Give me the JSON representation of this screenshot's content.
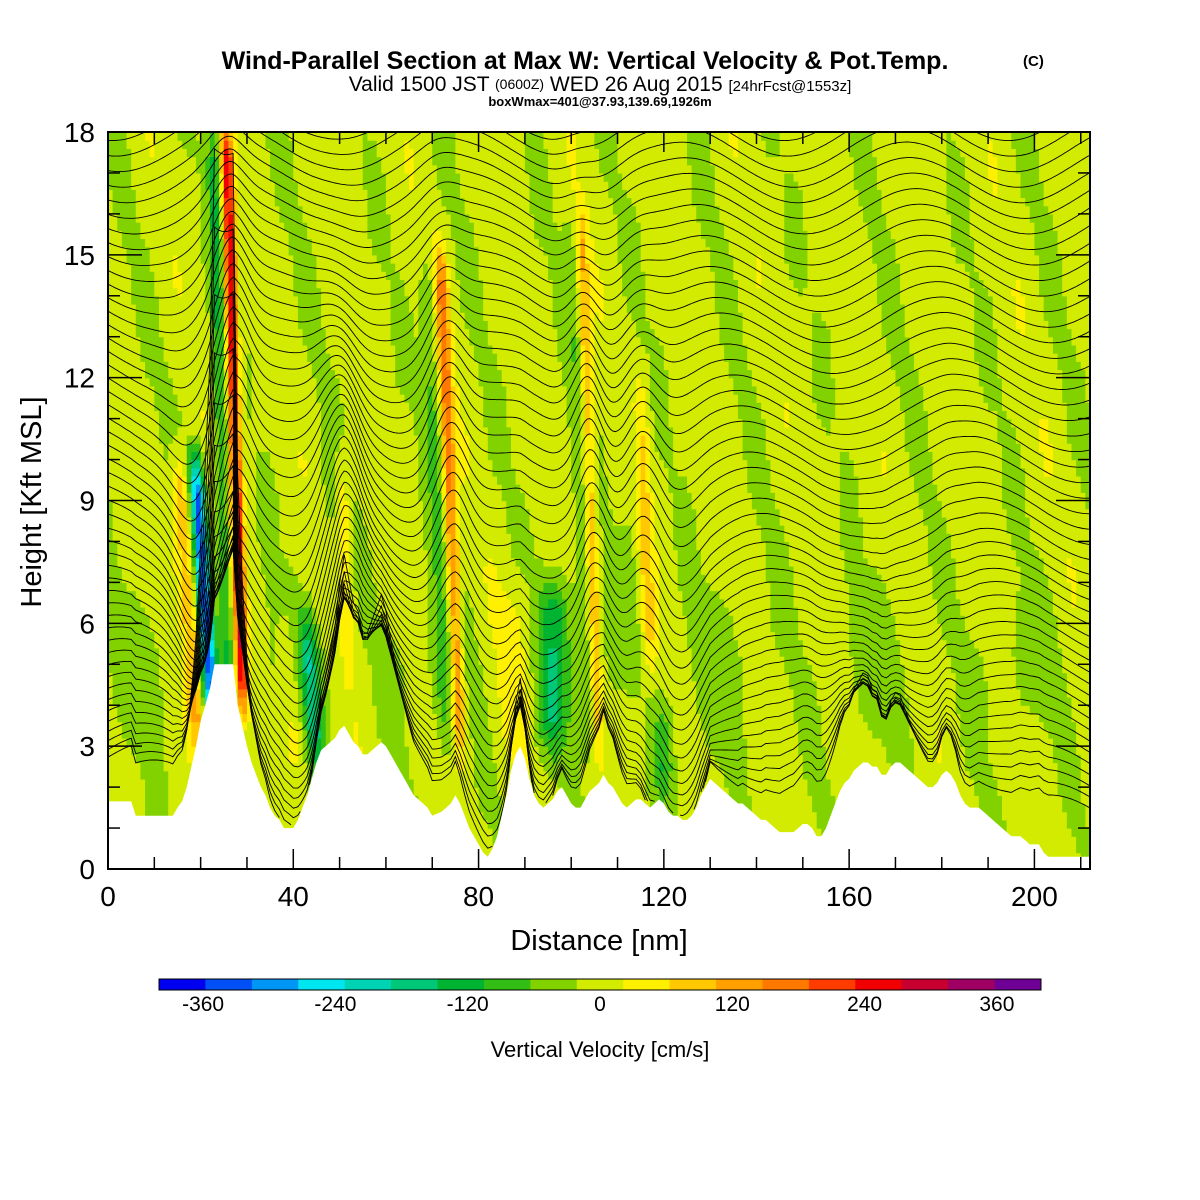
{
  "title": {
    "main": "Wind-Parallel Section at Max W: Vertical Velocity & Pot.Temp.",
    "copyright": "(C)",
    "valid_prefix": "Valid 1500 JST",
    "valid_utc": "(0600Z)",
    "valid_date": "WED 26 Aug 2015",
    "forecast": "[24hrFcst@1553z]",
    "boxline": "boxWmax=401@37.93,139.69,1926m"
  },
  "chart_data": {
    "type": "heatmap",
    "xlabel": "Distance [nm]",
    "ylabel": "Height [Kft MSL]",
    "xlim": [
      0,
      212
    ],
    "ylim": [
      0,
      18
    ],
    "x_ticks": [
      0,
      40,
      80,
      120,
      160,
      200
    ],
    "y_ticks": [
      0,
      3,
      6,
      9,
      12,
      15,
      18
    ],
    "colorbar": {
      "label": "Vertical Velocity [cm/s]",
      "ticks": [
        "-360",
        "-240",
        "-120",
        "0",
        "120",
        "240",
        "360"
      ],
      "tick_values": [
        -360,
        -240,
        -120,
        0,
        120,
        240,
        360
      ],
      "range": [
        -400,
        400
      ],
      "colors": [
        "#0000f0",
        "#0050f5",
        "#0096f5",
        "#00e6f0",
        "#00d2b4",
        "#00c878",
        "#00b432",
        "#32be14",
        "#82d200",
        "#d2eb00",
        "#fff000",
        "#ffc800",
        "#ffa000",
        "#ff7800",
        "#ff3c00",
        "#f00000",
        "#c80032",
        "#a00064",
        "#6e0096"
      ]
    },
    "terrain_kft": [
      [
        0,
        1.65
      ],
      [
        1,
        1.65
      ],
      [
        2,
        1.65
      ],
      [
        3,
        1.65
      ],
      [
        4,
        1.65
      ],
      [
        5,
        1.65
      ],
      [
        6,
        1.3
      ],
      [
        8,
        1.3
      ],
      [
        10,
        1.3
      ],
      [
        12,
        1.3
      ],
      [
        14,
        1.3
      ],
      [
        15,
        1.5
      ],
      [
        16,
        1.65
      ],
      [
        17,
        2.0
      ],
      [
        18,
        2.5
      ],
      [
        19,
        3.0
      ],
      [
        20,
        3.6
      ],
      [
        21,
        4.0
      ],
      [
        22,
        4.4
      ],
      [
        23,
        5.0
      ],
      [
        24,
        5.0
      ],
      [
        25,
        5.0
      ],
      [
        26,
        5.0
      ],
      [
        27,
        5.0
      ],
      [
        28,
        4.0
      ],
      [
        29,
        3.5
      ],
      [
        30,
        3.0
      ],
      [
        31,
        2.6
      ],
      [
        32,
        2.3
      ],
      [
        33,
        2.0
      ],
      [
        34,
        1.8
      ],
      [
        35,
        1.5
      ],
      [
        36,
        1.3
      ],
      [
        37,
        1.2
      ],
      [
        38,
        1.0
      ],
      [
        39,
        1.0
      ],
      [
        40,
        1.0
      ],
      [
        41,
        1.2
      ],
      [
        42,
        1.5
      ],
      [
        43,
        1.8
      ],
      [
        44,
        2.2
      ],
      [
        45,
        2.6
      ],
      [
        46,
        2.9
      ],
      [
        47,
        3.0
      ],
      [
        48,
        3.1
      ],
      [
        49,
        3.2
      ],
      [
        50,
        3.4
      ],
      [
        51,
        3.5
      ],
      [
        52,
        3.3
      ],
      [
        53,
        3.1
      ],
      [
        54,
        3.0
      ],
      [
        55,
        2.8
      ],
      [
        56,
        2.8
      ],
      [
        57,
        2.9
      ],
      [
        58,
        3.0
      ],
      [
        59,
        3.1
      ],
      [
        60,
        3.0
      ],
      [
        61,
        2.8
      ],
      [
        62,
        2.6
      ],
      [
        63,
        2.4
      ],
      [
        64,
        2.2
      ],
      [
        65,
        2.0
      ],
      [
        66,
        1.8
      ],
      [
        67,
        1.7
      ],
      [
        68,
        1.6
      ],
      [
        69,
        1.5
      ],
      [
        70,
        1.3
      ],
      [
        72,
        1.4
      ],
      [
        74,
        1.6
      ],
      [
        75,
        1.8
      ],
      [
        76,
        1.6
      ],
      [
        77,
        1.3
      ],
      [
        78,
        1.0
      ],
      [
        79,
        0.8
      ],
      [
        80,
        0.6
      ],
      [
        81,
        0.4
      ],
      [
        82,
        0.3
      ],
      [
        83,
        0.5
      ],
      [
        84,
        0.8
      ],
      [
        85,
        1.3
      ],
      [
        86,
        1.8
      ],
      [
        87,
        2.4
      ],
      [
        88,
        2.8
      ],
      [
        89,
        3.0
      ],
      [
        90,
        2.7
      ],
      [
        91,
        2.2
      ],
      [
        92,
        1.8
      ],
      [
        93,
        1.6
      ],
      [
        94,
        1.5
      ],
      [
        95,
        1.6
      ],
      [
        96,
        1.7
      ],
      [
        97,
        1.9
      ],
      [
        98,
        2.0
      ],
      [
        99,
        1.8
      ],
      [
        100,
        1.6
      ],
      [
        101,
        1.5
      ],
      [
        102,
        1.5
      ],
      [
        103,
        1.7
      ],
      [
        104,
        1.9
      ],
      [
        105,
        2.0
      ],
      [
        106,
        2.1
      ],
      [
        107,
        2.3
      ],
      [
        108,
        2.1
      ],
      [
        109,
        2.0
      ],
      [
        110,
        1.8
      ],
      [
        111,
        1.6
      ],
      [
        112,
        1.5
      ],
      [
        113,
        1.6
      ],
      [
        114,
        1.7
      ],
      [
        115,
        1.7
      ],
      [
        116,
        1.6
      ],
      [
        117,
        1.5
      ],
      [
        118,
        1.6
      ],
      [
        119,
        1.7
      ],
      [
        120,
        1.6
      ],
      [
        121,
        1.4
      ],
      [
        122,
        1.3
      ],
      [
        123,
        1.3
      ],
      [
        124,
        1.2
      ],
      [
        125,
        1.2
      ],
      [
        126,
        1.3
      ],
      [
        127,
        1.5
      ],
      [
        128,
        1.8
      ],
      [
        129,
        2.0
      ],
      [
        130,
        2.2
      ],
      [
        131,
        2.1
      ],
      [
        132,
        2.0
      ],
      [
        133,
        1.9
      ],
      [
        134,
        1.8
      ],
      [
        135,
        1.7
      ],
      [
        136,
        1.6
      ],
      [
        137,
        1.6
      ],
      [
        138,
        1.5
      ],
      [
        139,
        1.4
      ],
      [
        140,
        1.3
      ],
      [
        141,
        1.2
      ],
      [
        142,
        1.2
      ],
      [
        143,
        1.1
      ],
      [
        144,
        1.0
      ],
      [
        145,
        0.9
      ],
      [
        146,
        0.9
      ],
      [
        147,
        0.9
      ],
      [
        148,
        0.9
      ],
      [
        149,
        1.0
      ],
      [
        150,
        1.1
      ],
      [
        151,
        1.1
      ],
      [
        152,
        1.0
      ],
      [
        153,
        0.8
      ],
      [
        154,
        0.8
      ],
      [
        155,
        1.0
      ],
      [
        156,
        1.3
      ],
      [
        157,
        1.6
      ],
      [
        158,
        1.9
      ],
      [
        159,
        2.1
      ],
      [
        160,
        2.2
      ],
      [
        161,
        2.4
      ],
      [
        162,
        2.5
      ],
      [
        163,
        2.6
      ],
      [
        164,
        2.6
      ],
      [
        165,
        2.5
      ],
      [
        166,
        2.5
      ],
      [
        167,
        2.3
      ],
      [
        168,
        2.3
      ],
      [
        169,
        2.5
      ],
      [
        170,
        2.6
      ],
      [
        171,
        2.6
      ],
      [
        172,
        2.5
      ],
      [
        173,
        2.4
      ],
      [
        174,
        2.3
      ],
      [
        175,
        2.2
      ],
      [
        176,
        2.1
      ],
      [
        177,
        2.0
      ],
      [
        178,
        2.0
      ],
      [
        179,
        2.1
      ],
      [
        180,
        2.3
      ],
      [
        181,
        2.4
      ],
      [
        182,
        2.3
      ],
      [
        183,
        2.1
      ],
      [
        184,
        1.8
      ],
      [
        185,
        1.6
      ],
      [
        186,
        1.5
      ],
      [
        187,
        1.5
      ],
      [
        188,
        1.5
      ],
      [
        189,
        1.4
      ],
      [
        190,
        1.3
      ],
      [
        191,
        1.2
      ],
      [
        192,
        1.1
      ],
      [
        193,
        1.0
      ],
      [
        194,
        0.9
      ],
      [
        195,
        0.8
      ],
      [
        196,
        0.8
      ],
      [
        197,
        0.8
      ],
      [
        198,
        0.7
      ],
      [
        199,
        0.6
      ],
      [
        200,
        0.6
      ],
      [
        201,
        0.6
      ],
      [
        202,
        0.4
      ],
      [
        203,
        0.3
      ],
      [
        204,
        0.3
      ],
      [
        206,
        0.3
      ],
      [
        208,
        0.3
      ],
      [
        210,
        0.3
      ],
      [
        212,
        0.3
      ]
    ],
    "w_features": [
      {
        "type": "updraft",
        "x": 29,
        "z0": 4,
        "z1": 18,
        "amp": 280,
        "width": 1.3,
        "tilt": -0.25
      },
      {
        "type": "downdraft",
        "x": 23,
        "z0": 3,
        "z1": 10,
        "amp": 320,
        "width": 1.6,
        "tilt": -0.6
      },
      {
        "type": "updraft",
        "x": 76,
        "z0": 3,
        "z1": 15,
        "amp": 170,
        "width": 1.4,
        "tilt": -0.35
      },
      {
        "type": "downdraft",
        "x": 45,
        "z0": 2.5,
        "z1": 6,
        "amp": 150,
        "width": 2.0,
        "tilt": -0.6
      },
      {
        "type": "updraft",
        "x": 106,
        "z0": 3,
        "z1": 16,
        "amp": 100,
        "width": 1.2,
        "tilt": -0.3
      },
      {
        "type": "downdraft",
        "x": 96,
        "z0": 3,
        "z1": 7,
        "amp": 110,
        "width": 3.5,
        "tilt": 0
      },
      {
        "type": "downdraft",
        "x": 120,
        "z0": 1.8,
        "z1": 4,
        "amp": 90,
        "width": 2.5,
        "tilt": 0
      },
      {
        "type": "updraft",
        "x": 117,
        "z0": 5,
        "z1": 12,
        "amp": 70,
        "width": 1.5,
        "tilt": -0.3
      },
      {
        "type": "updraft",
        "x": 52,
        "z0": 5,
        "z1": 10,
        "amp": 60,
        "width": 1.5,
        "tilt": -0.3
      }
    ]
  }
}
